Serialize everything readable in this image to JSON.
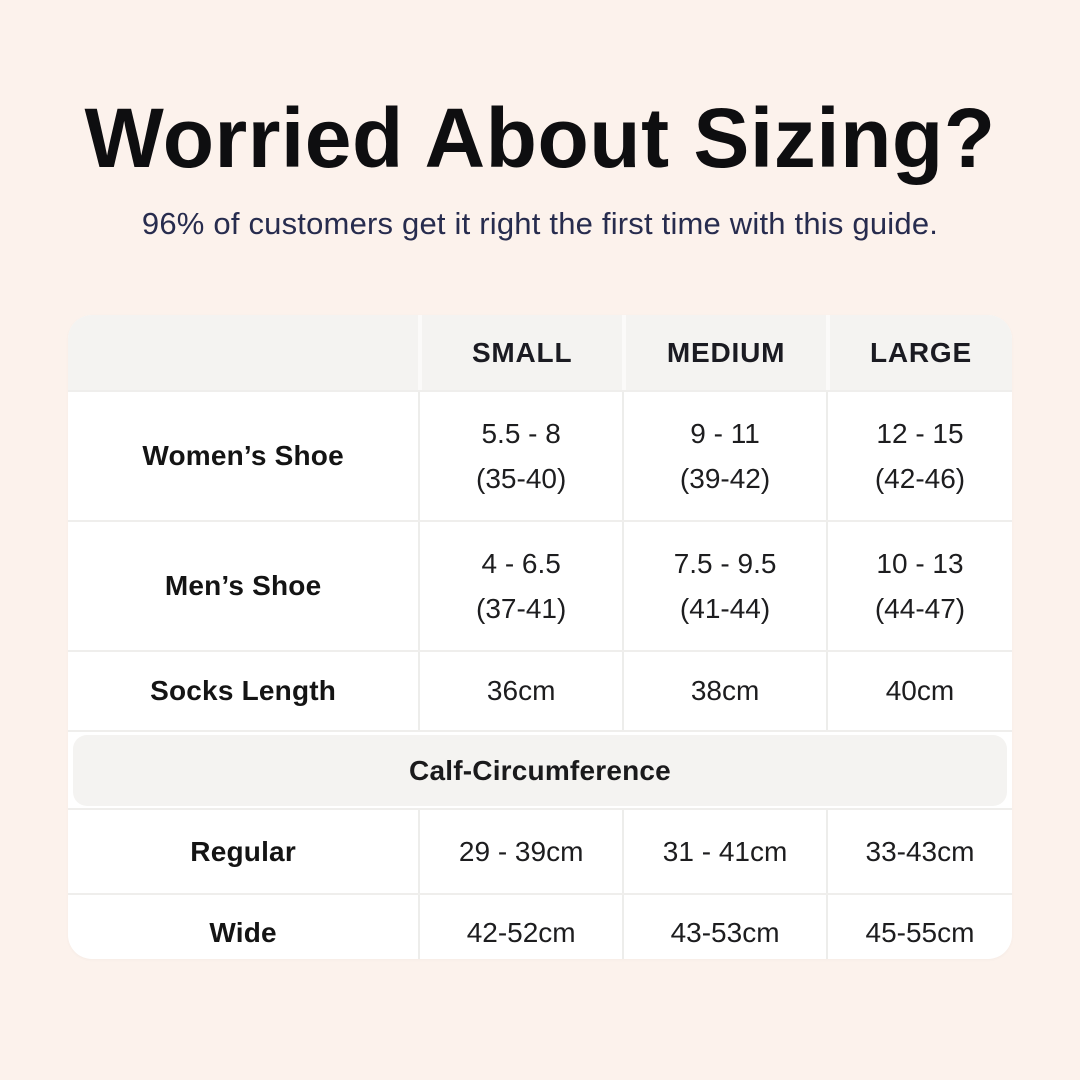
{
  "page": {
    "title": "Worried About Sizing?",
    "subtitle": "96% of customers get it right the first time with this guide.",
    "colors": {
      "background": "#fcf2ec",
      "title_text": "#0e0e10",
      "subtitle_text": "#272c4e",
      "card_background": "#ffffff",
      "header_background": "#f4f3f1",
      "separator": "#ededeb",
      "body_text": "#1d1d1f"
    }
  },
  "table": {
    "columns": [
      "",
      "SMALL",
      "MEDIUM",
      "LARGE"
    ],
    "rows": [
      {
        "label": "Women’s Shoe",
        "cells": [
          {
            "line1": "5.5 - 8",
            "line2": "(35-40)"
          },
          {
            "line1": "9 - 11",
            "line2": "(39-42)"
          },
          {
            "line1": "12 - 15",
            "line2": "(42-46)"
          }
        ]
      },
      {
        "label": "Men’s Shoe",
        "cells": [
          {
            "line1": "4 - 6.5",
            "line2": "(37-41)"
          },
          {
            "line1": "7.5 - 9.5",
            "line2": "(41-44)"
          },
          {
            "line1": "10 - 13",
            "line2": "(44-47)"
          }
        ]
      },
      {
        "label": "Socks Length",
        "cells": [
          "36cm",
          "38cm",
          "40cm"
        ]
      }
    ],
    "section_title": "Calf-Circumference",
    "section_rows": [
      {
        "label": "Regular",
        "cells": [
          "29 - 39cm",
          "31 - 41cm",
          "33-43cm"
        ]
      },
      {
        "label": "Wide",
        "cells": [
          "42-52cm",
          "43-53cm",
          "45-55cm"
        ]
      }
    ]
  }
}
